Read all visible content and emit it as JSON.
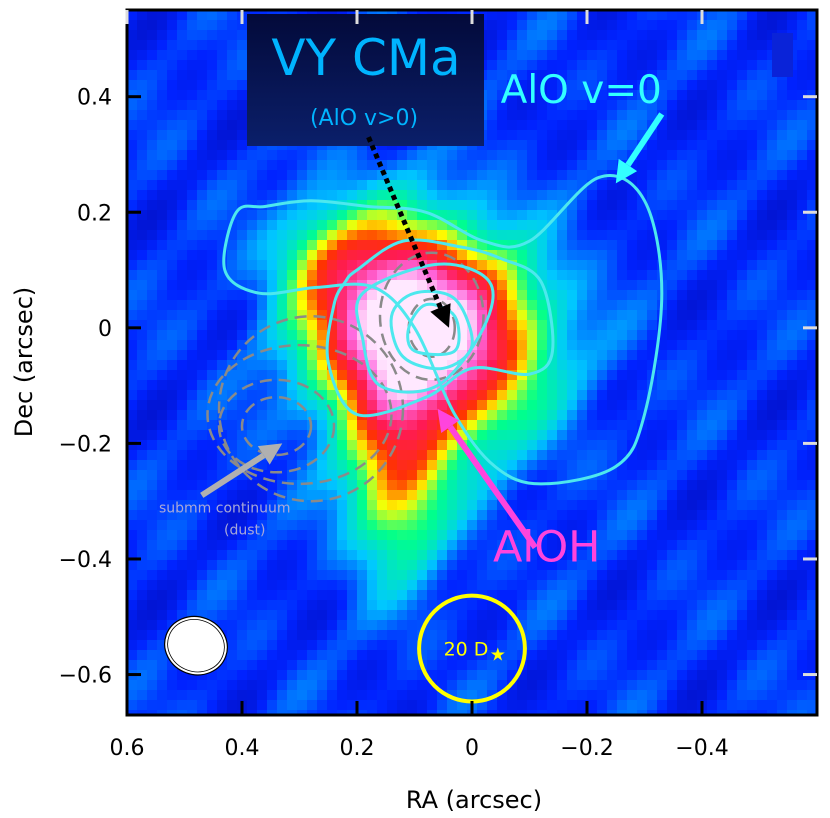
{
  "chart_data": {
    "type": "heatmap",
    "title": "VY CMa",
    "subtitle": "(AlO v>0)",
    "xlabel": "RA (arcsec)",
    "ylabel": "Dec (arcsec)",
    "xlim": [
      0.6,
      -0.6
    ],
    "ylim": [
      -0.67,
      0.55
    ],
    "xticks": [
      0.6,
      0.4,
      0.2,
      0,
      -0.2,
      -0.4
    ],
    "xtick_labels": [
      "0.6",
      "0.4",
      "0.2",
      "0",
      "−0.2",
      "−0.4"
    ],
    "yticks": [
      0.4,
      0.2,
      0,
      -0.2,
      -0.4,
      -0.6
    ],
    "ytick_labels": [
      "0.4",
      "0.2",
      "0",
      "−0.2",
      "−0.4",
      "−0.6"
    ],
    "colormap": [
      "#05008f",
      "#0022ff",
      "#00c8ff",
      "#00ff8c",
      "#ffff00",
      "#ff3300",
      "#ff1a55",
      "#ff66dd",
      "#ffe8ff"
    ],
    "emission_peaks": [
      {
        "x": 0.06,
        "y": -0.02,
        "sx": 0.12,
        "sy": 0.12,
        "amp": 1.0
      },
      {
        "x": 0.17,
        "y": 0.04,
        "sx": 0.09,
        "sy": 0.11,
        "amp": 0.45
      },
      {
        "x": 0.13,
        "y": -0.27,
        "sx": 0.06,
        "sy": 0.11,
        "amp": 0.45
      },
      {
        "x": 0.26,
        "y": 0.12,
        "sx": 0.06,
        "sy": 0.06,
        "amp": 0.2
      }
    ],
    "contours": {
      "alo_v0": {
        "color": "#4de8ee",
        "levels": [
          [
            [
              0.41,
              0.2
            ],
            [
              0.36,
              0.21
            ],
            [
              0.28,
              0.22
            ],
            [
              0.18,
              0.21
            ],
            [
              0.08,
              0.2
            ],
            [
              -0.02,
              0.15
            ],
            [
              -0.1,
              0.15
            ],
            [
              -0.22,
              0.26
            ],
            [
              -0.3,
              0.22
            ],
            [
              -0.33,
              0.06
            ],
            [
              -0.3,
              -0.15
            ],
            [
              -0.25,
              -0.24
            ],
            [
              -0.12,
              -0.27
            ],
            [
              -0.04,
              -0.24
            ],
            [
              0.03,
              -0.15
            ],
            [
              0.1,
              0.0
            ],
            [
              0.17,
              0.07
            ],
            [
              0.27,
              0.07
            ],
            [
              0.37,
              0.06
            ],
            [
              0.43,
              0.1
            ]
          ],
          [
            [
              0.22,
              0.08
            ],
            [
              0.2,
              0.1
            ],
            [
              0.12,
              0.15
            ],
            [
              0.02,
              0.14
            ],
            [
              -0.05,
              0.12
            ],
            [
              -0.12,
              0.08
            ],
            [
              -0.14,
              -0.04
            ],
            [
              -0.1,
              -0.08
            ],
            [
              0.0,
              -0.07
            ],
            [
              0.08,
              -0.12
            ],
            [
              0.2,
              -0.15
            ],
            [
              0.25,
              -0.06
            ],
            [
              0.24,
              0.04
            ]
          ],
          [
            [
              0.19,
              -0.02
            ],
            [
              0.19,
              0.06
            ],
            [
              0.06,
              0.11
            ],
            [
              -0.03,
              0.08
            ],
            [
              -0.02,
              0.0
            ],
            [
              0.06,
              -0.1
            ],
            [
              0.16,
              -0.1
            ]
          ],
          [
            [
              0.14,
              0.02
            ],
            [
              0.1,
              0.06
            ],
            [
              0.03,
              0.05
            ],
            [
              0.0,
              -0.03
            ],
            [
              0.05,
              -0.07
            ],
            [
              0.12,
              -0.05
            ]
          ],
          [
            [
              0.11,
              0.0
            ],
            [
              0.08,
              0.04
            ],
            [
              0.03,
              0.02
            ],
            [
              0.03,
              -0.04
            ],
            [
              0.1,
              -0.04
            ]
          ]
        ]
      },
      "continuum": {
        "color": "#8a8a8a",
        "ellipses": [
          {
            "x": 0.07,
            "y": 0.0,
            "rx": 0.04,
            "ry": 0.05
          },
          {
            "x": 0.07,
            "y": 0.02,
            "rx": 0.09,
            "ry": 0.11
          },
          {
            "x": 0.34,
            "y": -0.17,
            "rx": 0.06,
            "ry": 0.05
          },
          {
            "x": 0.34,
            "y": -0.17,
            "rx": 0.1,
            "ry": 0.08
          },
          {
            "x": 0.3,
            "y": -0.15,
            "rx": 0.16,
            "ry": 0.12
          },
          {
            "x": 0.28,
            "y": -0.14,
            "rx": 0.16,
            "ry": 0.16
          }
        ]
      }
    },
    "beam": {
      "x": 0.48,
      "y": -0.55,
      "rx": 0.055,
      "ry": 0.05,
      "color": "#ffffff"
    },
    "stellar_disk": {
      "x": 0.0,
      "y": -0.555,
      "r": 0.092,
      "color": "#ffff00",
      "label": "20 D",
      "star_x": -0.045,
      "star_y": -0.565
    },
    "annotations": {
      "alo_v0_label": {
        "text": "AlO v=0",
        "color": "#33ffff",
        "x": -0.19,
        "y": 0.41
      },
      "aloh_label": {
        "text": "AlOH",
        "color": "#ff44dd",
        "x": -0.13,
        "y": -0.38
      },
      "dust_label": {
        "line1": "submm continuum",
        "line2": "(dust)",
        "color": "#a8a8d8",
        "x": 0.43,
        "y": -0.32
      },
      "title_color": "#00b4ff"
    },
    "arrows": [
      {
        "name": "alo-v0-arrow",
        "from": [
          -0.33,
          0.37
        ],
        "to": [
          -0.25,
          0.25
        ],
        "color": "#33ffff",
        "style": "solid"
      },
      {
        "name": "title-arrow",
        "from": [
          0.18,
          0.33
        ],
        "to": [
          0.04,
          0.0
        ],
        "color": "#000000",
        "style": "dotted"
      },
      {
        "name": "aloh-arrow",
        "from": [
          -0.11,
          -0.38
        ],
        "to": [
          0.06,
          -0.14
        ],
        "color": "#ff44dd",
        "style": "solid"
      },
      {
        "name": "dust-arrow",
        "from": [
          0.47,
          -0.29
        ],
        "to": [
          0.33,
          -0.2
        ],
        "color": "#b0b0b0",
        "style": "solid"
      }
    ]
  }
}
